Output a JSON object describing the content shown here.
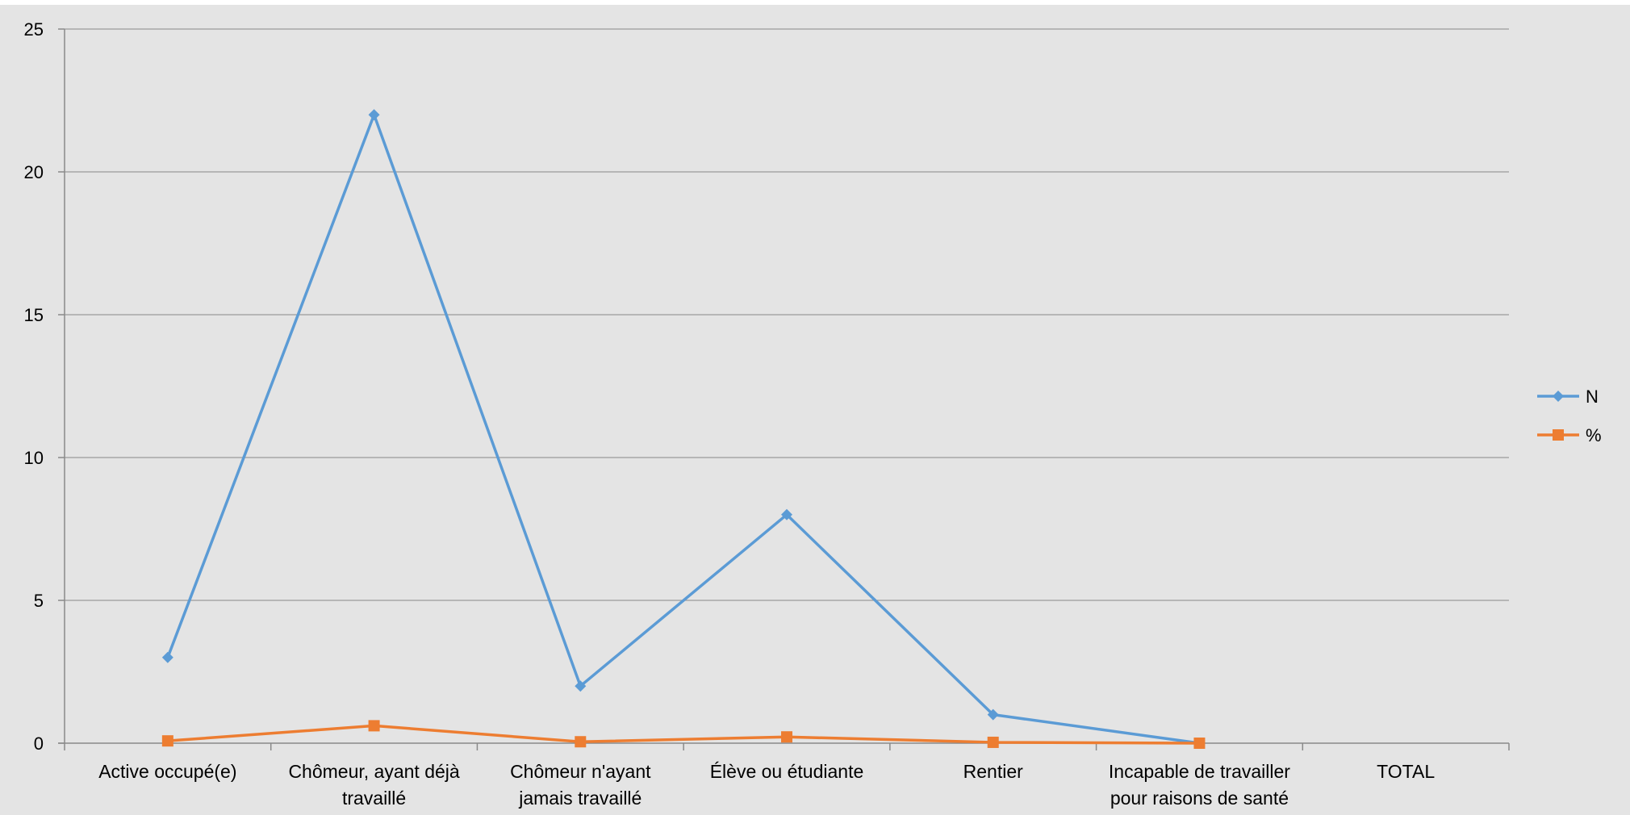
{
  "chart_data": {
    "type": "line",
    "title": "",
    "xlabel": "",
    "ylabel": "",
    "ylim": [
      0,
      25
    ],
    "yticks": [
      0,
      5,
      10,
      15,
      20,
      25
    ],
    "grid": true,
    "legend_position": "right",
    "categories": [
      [
        "Active occupé(e)"
      ],
      [
        "Chômeur, ayant déjà",
        "travaillé"
      ],
      [
        "Chômeur n'ayant",
        "jamais travaillé"
      ],
      [
        "Élève ou étudiante"
      ],
      [
        "Rentier"
      ],
      [
        "Incapable de travailler",
        "pour raisons de santé"
      ],
      [
        "TOTAL"
      ]
    ],
    "series": [
      {
        "name": "N",
        "color": "#5b9bd5",
        "marker": "diamond",
        "values": [
          3,
          22,
          2,
          8,
          1,
          0,
          null
        ]
      },
      {
        "name": "%",
        "color": "#ed7d31",
        "marker": "square",
        "values": [
          0.08,
          0.61,
          0.05,
          0.22,
          0.03,
          0.0,
          null
        ]
      }
    ]
  }
}
